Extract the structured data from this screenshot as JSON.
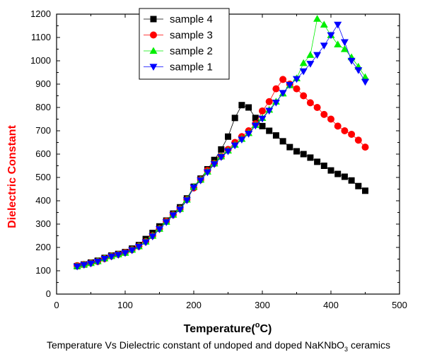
{
  "chart_data": {
    "type": "scatter",
    "xlabel": "Temperature(",
    "xlabel_sup": "o",
    "xlabel_unit": "C)",
    "ylabel": "Dielectric Constant",
    "xlim": [
      0,
      500
    ],
    "ylim": [
      0,
      1200
    ],
    "xticks": [
      0,
      100,
      200,
      300,
      400,
      500
    ],
    "yticks": [
      0,
      100,
      200,
      300,
      400,
      500,
      600,
      700,
      800,
      900,
      1000,
      1100,
      1200
    ],
    "grid": false,
    "legend_placement": "top-left",
    "series": [
      {
        "name": "sample 4",
        "color": "#000000",
        "marker": "square",
        "x": [
          30,
          40,
          50,
          60,
          70,
          80,
          90,
          100,
          110,
          120,
          130,
          140,
          150,
          160,
          170,
          180,
          190,
          200,
          210,
          220,
          230,
          240,
          250,
          260,
          270,
          280,
          290,
          300,
          310,
          320,
          330,
          340,
          350,
          360,
          370,
          380,
          390,
          400,
          410,
          420,
          430,
          440,
          450
        ],
        "y": [
          120,
          127,
          135,
          143,
          155,
          165,
          172,
          180,
          195,
          210,
          236,
          262,
          290,
          315,
          345,
          372,
          410,
          460,
          495,
          535,
          575,
          620,
          675,
          755,
          810,
          800,
          755,
          720,
          700,
          680,
          655,
          630,
          612,
          600,
          585,
          567,
          550,
          530,
          515,
          503,
          487,
          463,
          443
        ]
      },
      {
        "name": "sample 3",
        "color": "#ff0000",
        "marker": "circle",
        "x": [
          30,
          40,
          50,
          60,
          70,
          80,
          90,
          100,
          110,
          120,
          130,
          140,
          150,
          160,
          170,
          180,
          190,
          200,
          210,
          220,
          230,
          240,
          250,
          260,
          270,
          280,
          290,
          300,
          310,
          320,
          330,
          340,
          350,
          360,
          370,
          380,
          390,
          400,
          410,
          420,
          430,
          440,
          450
        ],
        "y": [
          122,
          127,
          133,
          140,
          152,
          163,
          170,
          178,
          190,
          205,
          225,
          250,
          280,
          312,
          340,
          365,
          405,
          455,
          490,
          530,
          560,
          590,
          620,
          650,
          675,
          700,
          730,
          785,
          825,
          880,
          920,
          900,
          880,
          850,
          820,
          800,
          770,
          750,
          720,
          700,
          685,
          660,
          630
        ]
      },
      {
        "name": "sample 2",
        "color": "#00ee00",
        "marker": "triangle-up",
        "x": [
          30,
          40,
          50,
          60,
          70,
          80,
          90,
          100,
          110,
          120,
          130,
          140,
          150,
          160,
          170,
          180,
          190,
          200,
          210,
          220,
          230,
          240,
          250,
          260,
          270,
          280,
          290,
          300,
          310,
          320,
          330,
          340,
          350,
          360,
          370,
          380,
          390,
          400,
          410,
          420,
          430,
          440,
          450
        ],
        "y": [
          120,
          127,
          133,
          141,
          153,
          163,
          170,
          177,
          190,
          205,
          225,
          250,
          280,
          310,
          340,
          365,
          405,
          460,
          490,
          525,
          560,
          590,
          615,
          640,
          665,
          690,
          725,
          755,
          790,
          825,
          860,
          895,
          925,
          990,
          1025,
          1180,
          1155,
          1110,
          1070,
          1050,
          1015,
          975,
          930
        ]
      },
      {
        "name": "sample 1",
        "color": "#0000ff",
        "marker": "triangle-down",
        "x": [
          30,
          40,
          50,
          60,
          70,
          80,
          90,
          100,
          110,
          120,
          130,
          140,
          150,
          160,
          170,
          180,
          190,
          200,
          210,
          220,
          230,
          240,
          250,
          260,
          270,
          280,
          290,
          300,
          310,
          320,
          330,
          340,
          350,
          360,
          370,
          380,
          390,
          400,
          410,
          420,
          430,
          440,
          450
        ],
        "y": [
          118,
          125,
          131,
          139,
          151,
          161,
          168,
          176,
          188,
          203,
          222,
          247,
          278,
          308,
          338,
          362,
          402,
          457,
          487,
          522,
          557,
          587,
          612,
          637,
          662,
          687,
          722,
          752,
          786,
          821,
          862,
          897,
          922,
          955,
          987,
          1025,
          1065,
          1110,
          1155,
          1080,
          1000,
          960,
          910
        ]
      }
    ],
    "caption_before": "Temperature Vs Dielectric constant of undoped and doped NaKNbO",
    "caption_sub": "3",
    "caption_after": " ceramics"
  }
}
